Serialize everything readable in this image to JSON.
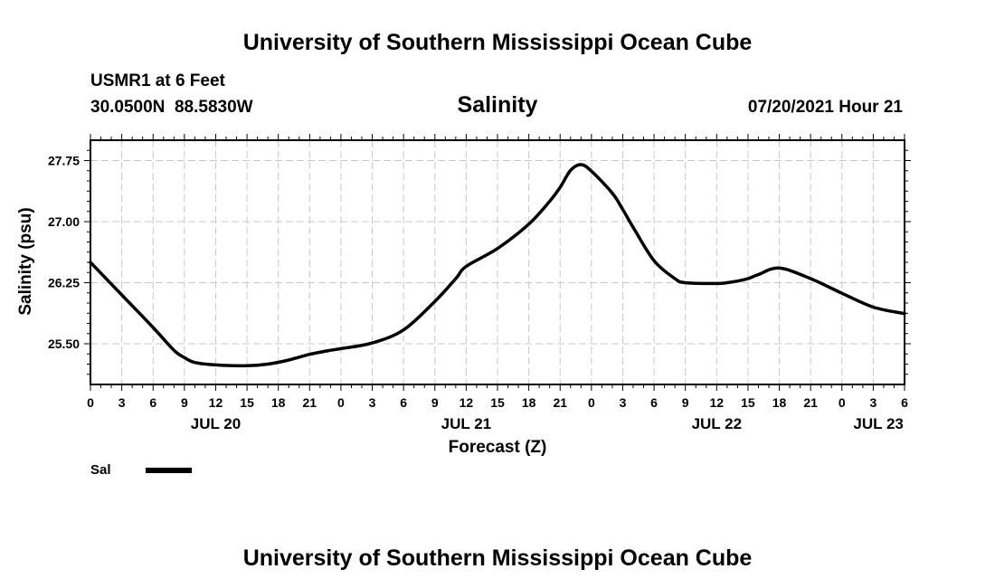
{
  "header": {
    "top_title": "University of Southern Mississippi Ocean Cube",
    "station": "USMR1 at 6 Feet",
    "coords": "30.0500N  88.5830W",
    "variable": "Salinity",
    "timestamp": "07/20/2021 Hour 21",
    "bottom_title": "University of Southern Mississippi Ocean Cube"
  },
  "legend": {
    "label": "Sal"
  },
  "chart_data": {
    "type": "line",
    "title": "Salinity",
    "xlabel": "Forecast (Z)",
    "ylabel": "Salinity (psu)",
    "x_unit": "hours from JUL 20 00Z",
    "xlim": [
      0,
      78
    ],
    "ylim": [
      25.0,
      28.0
    ],
    "yticks": [
      25.5,
      26.25,
      27.0,
      27.75
    ],
    "ytick_labels": [
      "25.50",
      "26.25",
      "27.00",
      "27.75"
    ],
    "xticks": [
      0,
      3,
      6,
      9,
      12,
      15,
      18,
      21,
      24,
      27,
      30,
      33,
      36,
      39,
      42,
      45,
      48,
      51,
      54,
      57,
      60,
      63,
      66,
      69,
      72,
      75,
      78
    ],
    "xtick_labels": [
      "0",
      "3",
      "6",
      "9",
      "12",
      "15",
      "18",
      "21",
      "0",
      "3",
      "6",
      "9",
      "12",
      "15",
      "18",
      "21",
      "0",
      "3",
      "6",
      "9",
      "12",
      "15",
      "18",
      "21",
      "0",
      "3",
      "6"
    ],
    "date_labels": [
      {
        "x": 12,
        "label": "JUL 20"
      },
      {
        "x": 36,
        "label": "JUL 21"
      },
      {
        "x": 60,
        "label": "JUL 22"
      },
      {
        "x": 75.5,
        "label": "JUL 23"
      }
    ],
    "grid": true,
    "legend_position": "bottom-left",
    "series": [
      {
        "name": "Sal",
        "x": [
          0,
          3,
          6,
          8,
          9,
          10,
          12,
          15,
          17,
          19,
          21,
          23,
          24,
          27,
          30,
          33,
          35,
          36,
          39,
          42,
          44,
          45,
          46,
          47,
          48,
          50,
          51,
          52,
          54,
          56,
          57,
          60,
          61,
          62,
          63,
          64,
          66,
          69,
          72,
          75,
          78
        ],
        "y": [
          26.5,
          26.1,
          25.7,
          25.42,
          25.33,
          25.27,
          25.24,
          25.23,
          25.25,
          25.3,
          25.37,
          25.42,
          25.44,
          25.51,
          25.67,
          26.02,
          26.3,
          26.45,
          26.67,
          26.97,
          27.25,
          27.42,
          27.63,
          27.7,
          27.62,
          27.35,
          27.15,
          26.93,
          26.52,
          26.3,
          26.25,
          26.24,
          26.25,
          26.27,
          26.3,
          26.35,
          26.43,
          26.3,
          26.12,
          25.95,
          25.87
        ]
      }
    ]
  }
}
